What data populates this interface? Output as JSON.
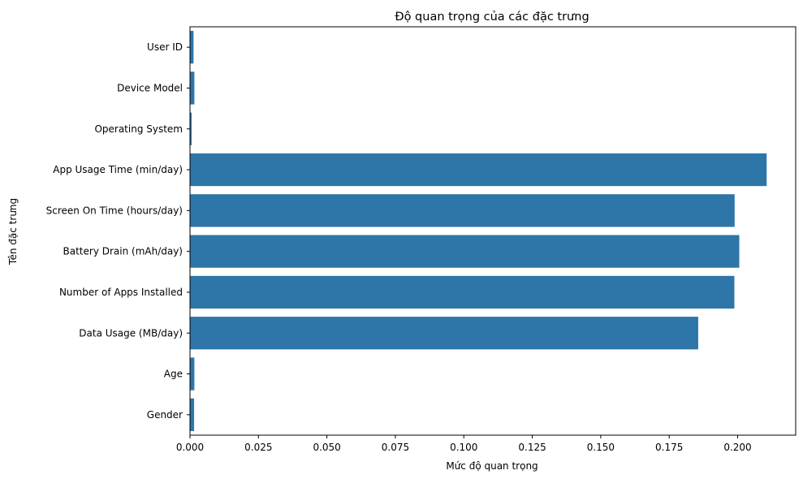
{
  "chart_data": {
    "type": "bar",
    "orientation": "horizontal",
    "title": "Độ quan trọng của các đặc trưng",
    "xlabel": "Mức độ quan trọng",
    "ylabel": "Tên đặc trưng",
    "categories": [
      "User ID",
      "Device Model",
      "Operating System",
      "App Usage Time (min/day)",
      "Screen On Time (hours/day)",
      "Battery Drain (mAh/day)",
      "Number of Apps Installed",
      "Data Usage (MB/day)",
      "Age",
      "Gender"
    ],
    "values": [
      0.0013,
      0.0016,
      0.0006,
      0.2106,
      0.1989,
      0.2006,
      0.1988,
      0.1856,
      0.0016,
      0.0015
    ],
    "xlim": [
      0,
      0.2212
    ],
    "xticks": [
      0.0,
      0.025,
      0.05,
      0.075,
      0.1,
      0.125,
      0.15,
      0.175,
      0.2
    ],
    "xtick_labels": [
      "0.000",
      "0.025",
      "0.050",
      "0.075",
      "0.100",
      "0.125",
      "0.150",
      "0.175",
      "0.200"
    ],
    "grid": false,
    "bar_color": "#2e75a8"
  }
}
